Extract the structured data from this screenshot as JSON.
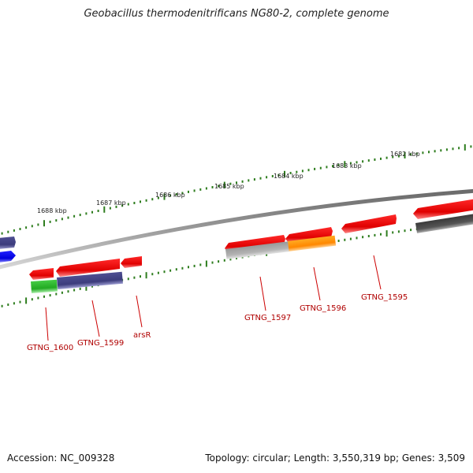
{
  "title": "Geobacillus thermodenitrificans NG80-2, complete genome",
  "footer": {
    "accession": "Accession: NC_009328",
    "summary": "Topology: circular; Length: 3,550,319 bp; Genes: 3,509"
  },
  "ticks": [
    {
      "label": "1688 kbp"
    },
    {
      "label": "1687 kbp"
    },
    {
      "label": "1686 kbp"
    },
    {
      "label": "1685 kbp"
    },
    {
      "label": "1684 kbp"
    },
    {
      "label": "1683 kbp"
    },
    {
      "label": "1682 kbp"
    }
  ],
  "gene_labels": [
    {
      "text": "GTNG_1600"
    },
    {
      "text": "GTNG_1599"
    },
    {
      "text": "arsR"
    },
    {
      "text": "GTNG_1597"
    },
    {
      "text": "GTNG_1596"
    },
    {
      "text": "GTNG_1595"
    }
  ],
  "colors": {
    "gene_red": "#ee1111",
    "gene_purple": "#4a4a8c",
    "gene_blue": "#1a1aee",
    "gene_green": "#33bb33",
    "gene_orange": "#ff9900",
    "gene_gray": "#aaaaaa",
    "gene_darkgray": "#555555",
    "label_red": "#b00000",
    "tick_green": "#2e7d1e",
    "backbone": "#888888"
  }
}
